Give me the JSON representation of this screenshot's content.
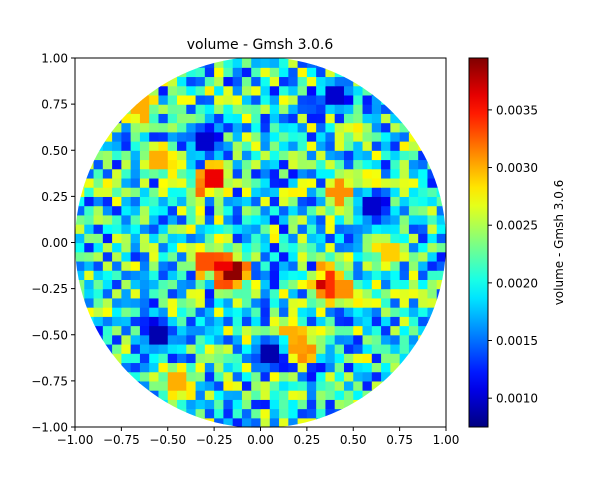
{
  "chart_data": {
    "type": "heatmap",
    "title": "volume - Gmsh 3.0.6",
    "xlim": [
      -1.0,
      1.0
    ],
    "ylim": [
      -1.0,
      1.0
    ],
    "x_ticks": [
      "−1.00",
      "−0.75",
      "−0.50",
      "−0.25",
      "0.00",
      "0.25",
      "0.50",
      "0.75",
      "1.00"
    ],
    "y_ticks": [
      "−1.00",
      "−0.75",
      "−0.50",
      "−0.25",
      "0.00",
      "0.25",
      "0.50",
      "0.75",
      "1.00"
    ],
    "grid": false,
    "domain": "unit disk (radius 1.0) partitioned into small mesh cells",
    "colormap": "jet",
    "colorbar": {
      "label": "volume - Gmsh 3.0.6",
      "range": [
        0.00075,
        0.00395
      ],
      "ticks": [
        "0.0010",
        "0.0015",
        "0.0020",
        "0.0025",
        "0.0030",
        "0.0035"
      ],
      "tick_values": [
        0.001,
        0.0015,
        0.002,
        0.0025,
        0.003,
        0.0035
      ]
    },
    "typical_range": [
      0.0012,
      0.0028
    ],
    "hotspots": [
      {
        "x": -0.25,
        "y": 0.34,
        "value": 0.0036
      },
      {
        "x": -0.17,
        "y": -0.14,
        "value": 0.0039
      },
      {
        "x": -0.28,
        "y": -0.1,
        "value": 0.0033
      },
      {
        "x": 0.37,
        "y": -0.22,
        "value": 0.0037
      },
      {
        "x": 0.44,
        "y": -0.26,
        "value": 0.0031
      },
      {
        "x": 0.23,
        "y": -0.57,
        "value": 0.0031
      },
      {
        "x": 0.43,
        "y": 0.27,
        "value": 0.0031
      },
      {
        "x": -0.56,
        "y": 0.44,
        "value": 0.003
      },
      {
        "x": -0.64,
        "y": 0.73,
        "value": 0.003
      },
      {
        "x": -0.45,
        "y": -0.75,
        "value": 0.003
      },
      {
        "x": 0.15,
        "y": -0.5,
        "value": 0.003
      },
      {
        "x": 0.68,
        "y": -0.05,
        "value": 0.0029
      }
    ],
    "coldspots": [
      {
        "x": -0.55,
        "y": -0.48,
        "value": 0.0009
      },
      {
        "x": 0.05,
        "y": -0.6,
        "value": 0.0009
      },
      {
        "x": 0.38,
        "y": 0.8,
        "value": 0.001
      },
      {
        "x": -0.3,
        "y": 0.55,
        "value": 0.001
      },
      {
        "x": 0.6,
        "y": 0.2,
        "value": 0.001
      }
    ]
  }
}
